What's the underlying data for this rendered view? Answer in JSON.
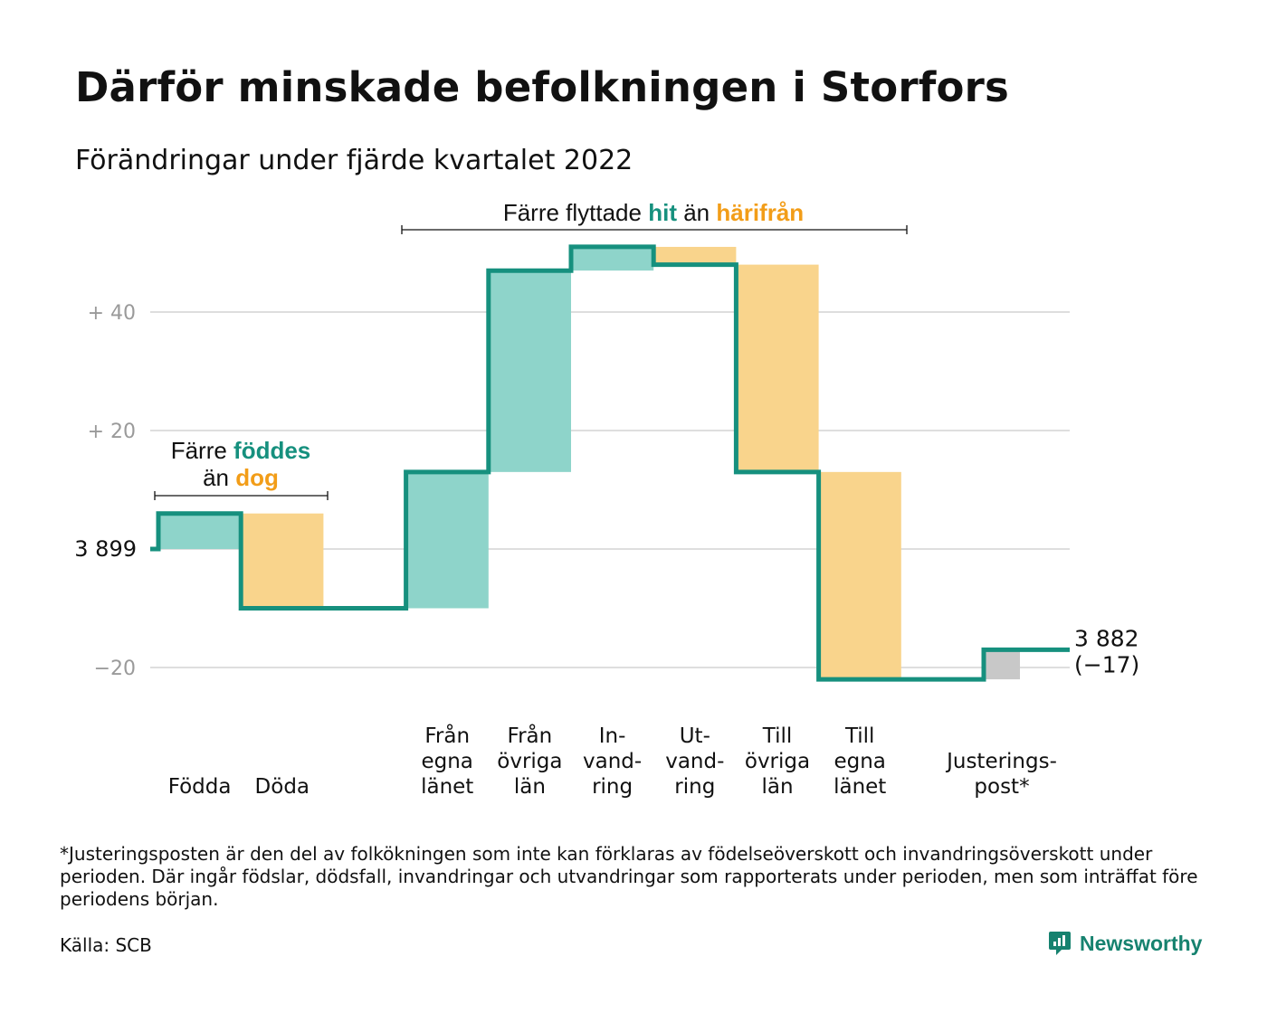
{
  "title": "Därför minskade befolkningen i Storfors",
  "subtitle": "Förändringar under fjärde kvartalet 2022",
  "colors": {
    "line": "#16907e",
    "inflow": "#8ed4ca",
    "outflow": "#f9d48c",
    "adjustment": "#c8c8c8",
    "grid": "#dedede",
    "tick": "#9a9a9a",
    "accent_in": "#16907e",
    "accent_out": "#f29d18"
  },
  "annotations": {
    "births": {
      "line1_pre": "Färre ",
      "line1_strong": "föddes",
      "line2_pre": "än ",
      "line2_strong": "dog"
    },
    "migration": {
      "pre": "Färre flyttade ",
      "strong_in": "hit",
      "mid": " än ",
      "strong_out": "härifrån"
    }
  },
  "chart_data": {
    "type": "waterfall",
    "start_value": 3899,
    "start_label": "3 899",
    "end_value": 3882,
    "end_label": "3 882",
    "end_change_label": "(−17)",
    "yticks": [
      {
        "value": -20,
        "label": "−20"
      },
      {
        "value": 0,
        "label": ""
      },
      {
        "value": 20,
        "label": "+ 20"
      },
      {
        "value": 40,
        "label": "+ 40"
      }
    ],
    "ylim": [
      -22,
      52
    ],
    "grid": true,
    "steps": [
      {
        "key": "fodda",
        "label_lines": [
          "Födda"
        ],
        "change": 6,
        "kind": "inflow"
      },
      {
        "key": "doda",
        "label_lines": [
          "Döda"
        ],
        "change": -16,
        "kind": "outflow"
      },
      {
        "key": "gap",
        "label_lines": [],
        "change": 0,
        "kind": "spacer"
      },
      {
        "key": "fran_egna_lanet",
        "label_lines": [
          "Från",
          "egna",
          "länet"
        ],
        "change": 23,
        "kind": "inflow"
      },
      {
        "key": "fran_ovriga_lan",
        "label_lines": [
          "Från",
          "övriga",
          "län"
        ],
        "change": 34,
        "kind": "inflow"
      },
      {
        "key": "invandring",
        "label_lines": [
          "In-",
          "vand-",
          "ring"
        ],
        "change": 4,
        "kind": "inflow"
      },
      {
        "key": "utvandring",
        "label_lines": [
          "Ut-",
          "vand-",
          "ring"
        ],
        "change": -3,
        "kind": "outflow"
      },
      {
        "key": "till_ovriga_lan",
        "label_lines": [
          "Till",
          "övriga",
          "län"
        ],
        "change": -35,
        "kind": "outflow"
      },
      {
        "key": "till_egna_lanet",
        "label_lines": [
          "Till",
          "egna",
          "länet"
        ],
        "change": -35,
        "kind": "outflow"
      },
      {
        "key": "gap2",
        "label_lines": [],
        "change": 0,
        "kind": "spacer"
      },
      {
        "key": "justeringspost",
        "label_lines": [
          "Justerings-",
          "post*"
        ],
        "change": 5,
        "kind": "adjustment"
      }
    ]
  },
  "footnote": "*Justeringsposten är den del av folkökningen som inte kan förklaras av födelseöverskott och invandringsöverskott under perioden. Där ingår födslar, dödsfall, invandringar och utvandringar som rapporterats under perioden, men som inträffat före periodens början.",
  "source": "Källa: SCB",
  "brand": {
    "name": "Newsworthy",
    "icon": "newsworthy-logo-icon"
  }
}
